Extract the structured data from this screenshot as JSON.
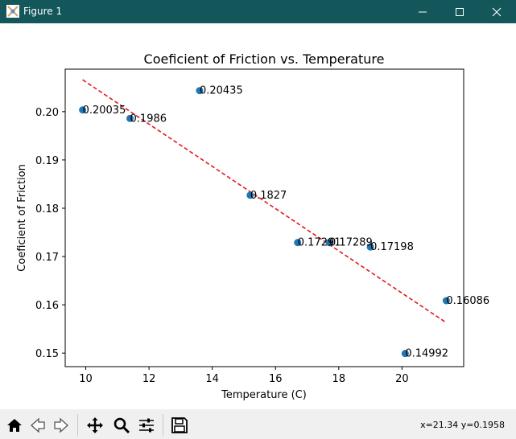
{
  "window": {
    "title": "Figure 1",
    "titlebar_color": "#13575b"
  },
  "icons": {
    "app": "matplotlib-figure-icon",
    "minimize": "minimize-icon",
    "maximize": "maximize-icon",
    "close": "close-icon"
  },
  "toolbar": {
    "buttons": [
      {
        "name": "home-button",
        "icon": "home-icon"
      },
      {
        "name": "back-button",
        "icon": "back-arrow-icon"
      },
      {
        "name": "forward-button",
        "icon": "forward-arrow-icon"
      },
      {
        "name": "pan-button",
        "icon": "move-arrows-icon"
      },
      {
        "name": "zoom-button",
        "icon": "magnifier-icon"
      },
      {
        "name": "configure-subplots-button",
        "icon": "sliders-icon"
      },
      {
        "name": "save-button",
        "icon": "floppy-disk-icon"
      }
    ],
    "coordinates": "x=21.34 y=0.1958"
  },
  "chart_data": {
    "type": "scatter",
    "title": "Coeficient of Friction vs. Temperature",
    "xlabel": "Temperature (C)",
    "ylabel": "Coeficient of Friction",
    "xlim": [
      9.35,
      21.95
    ],
    "ylim": [
      0.1472,
      0.2088
    ],
    "xticks": [
      10,
      12,
      14,
      16,
      18,
      20
    ],
    "yticks": [
      0.15,
      0.16,
      0.17,
      0.18,
      0.19,
      0.2
    ],
    "ytick_labels": [
      "0.15",
      "0.16",
      "0.17",
      "0.18",
      "0.19",
      "0.20"
    ],
    "grid": false,
    "points": [
      {
        "x": 9.9,
        "y": 0.20035,
        "label": "0.20035"
      },
      {
        "x": 11.4,
        "y": 0.1986,
        "label": "0.1986"
      },
      {
        "x": 13.6,
        "y": 0.20435,
        "label": "0.20435"
      },
      {
        "x": 15.2,
        "y": 0.1827,
        "label": "0.1827"
      },
      {
        "x": 16.7,
        "y": 0.1729,
        "label": "0.17291"
      },
      {
        "x": 17.7,
        "y": 0.17289,
        "label": "0.17289"
      },
      {
        "x": 19.0,
        "y": 0.17198,
        "label": "0.17198"
      },
      {
        "x": 20.1,
        "y": 0.14992,
        "label": "0.14992"
      },
      {
        "x": 21.4,
        "y": 0.16086,
        "label": "0.16086"
      }
    ],
    "marker_color": "#1f77b4",
    "trendline": {
      "style": "dashed",
      "color": "#e31a1c",
      "points": [
        [
          9.9,
          0.2066
        ],
        [
          21.4,
          0.1563
        ]
      ]
    }
  }
}
